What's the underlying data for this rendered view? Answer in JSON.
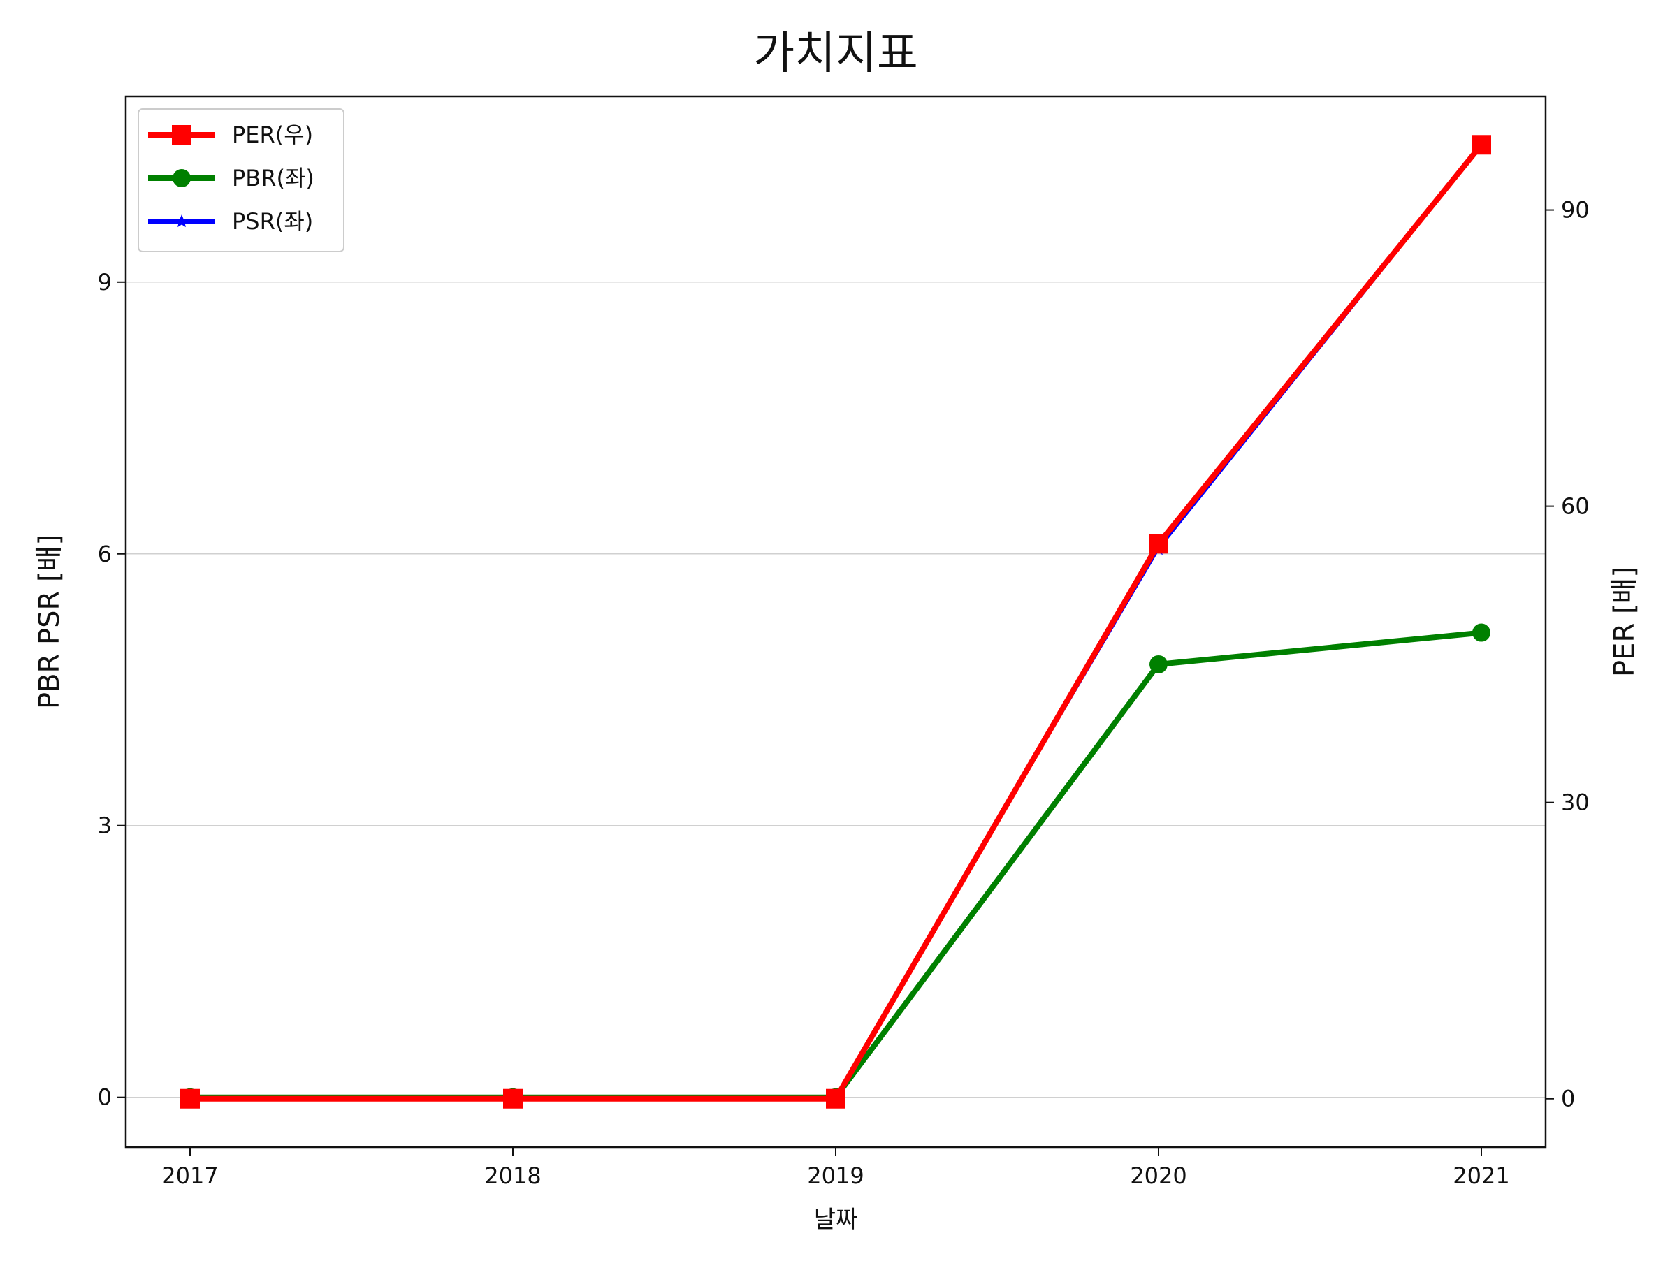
{
  "chart_data": {
    "type": "line",
    "title": "가치지표",
    "xlabel": "날짜",
    "ylabel_left": "PBR PSR [배]",
    "ylabel_right": "PER [배]",
    "x": [
      "2017",
      "2018",
      "2019",
      "2020",
      "2021"
    ],
    "ylim_left": [
      -0.55,
      11.05
    ],
    "ylim_right": [
      -4.9,
      101.5
    ],
    "yticks_left": [
      "0",
      "3",
      "6",
      "9"
    ],
    "yticks_right": [
      "0",
      "30",
      "60",
      "90"
    ],
    "grid": true,
    "legend_position": "top-left",
    "series": [
      {
        "name": "PER(우)",
        "axis": "right",
        "color": "#ff0000",
        "marker": "square",
        "values": [
          0,
          0,
          0,
          56.2,
          96.6
        ]
      },
      {
        "name": "PBR(좌)",
        "axis": "left",
        "color": "#008000",
        "marker": "circle",
        "values": [
          0,
          0,
          0,
          4.78,
          5.13
        ]
      },
      {
        "name": "PSR(좌)",
        "axis": "left",
        "color": "#0000ff",
        "marker": "star",
        "values": [
          0,
          0,
          0,
          6.05,
          10.5
        ]
      }
    ]
  }
}
